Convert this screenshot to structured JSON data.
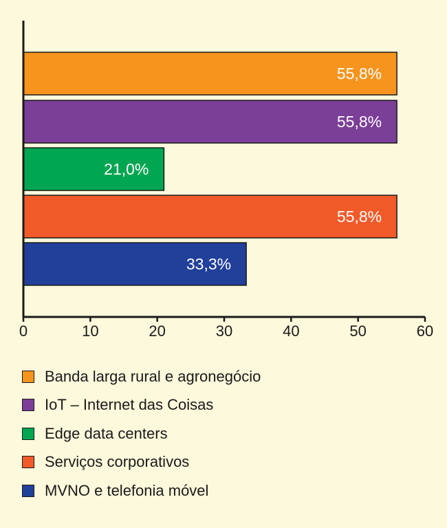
{
  "chart_data": {
    "type": "bar",
    "orientation": "horizontal",
    "title": "",
    "xlabel": "",
    "ylabel": "",
    "xlim": [
      0,
      60
    ],
    "x_ticks": [
      0,
      10,
      20,
      30,
      40,
      50,
      60
    ],
    "grid": false,
    "legend_position": "bottom",
    "categories": [
      "Banda larga rural e agronegócio",
      "IoT – Internet das Coisas",
      "Edge data centers",
      "Serviços corporativos",
      "MVNO e telefonia móvel"
    ],
    "values": [
      55.8,
      55.8,
      21.0,
      55.8,
      33.3
    ],
    "value_labels": [
      "55,8%",
      "55,8%",
      "21,0%",
      "55,8%",
      "33,3%"
    ],
    "colors": [
      "#f7941d",
      "#7b3f98",
      "#00a651",
      "#f15a29",
      "#21409a"
    ]
  }
}
